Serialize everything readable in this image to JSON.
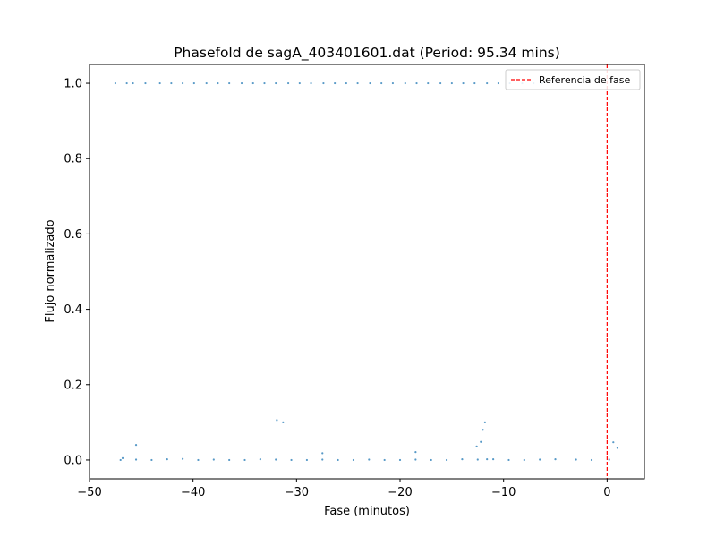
{
  "chart_data": {
    "type": "scatter",
    "title": "Phasefold de sagA_403401601.dat (Period: 95.34 mins)",
    "xlabel": "Fase (minutos)",
    "ylabel": "Flujo normalizado",
    "xlim": [
      -50,
      3.6
    ],
    "ylim": [
      -0.05,
      1.05
    ],
    "xticks": [
      -50,
      -40,
      -30,
      -20,
      -10,
      0
    ],
    "xtick_labels": [
      "−50",
      "−40",
      "−30",
      "−20",
      "−10",
      "0"
    ],
    "yticks": [
      0.0,
      0.2,
      0.4,
      0.6,
      0.8,
      1.0
    ],
    "ytick_labels": [
      "0.0",
      "0.2",
      "0.4",
      "0.6",
      "0.8",
      "1.0"
    ],
    "grid": false,
    "legend_position": "top-right",
    "series": [
      {
        "name": "",
        "color": "#1f77b4",
        "x": [
          -47.5,
          -46.4,
          -45.8,
          -44.6,
          -43.2,
          -42.1,
          -41.0,
          -39.9,
          -38.7,
          -37.6,
          -36.5,
          -35.3,
          -34.2,
          -33.1,
          -32.0,
          -30.8,
          -29.7,
          -28.6,
          -27.4,
          -26.3,
          -25.2,
          -24.1,
          -22.9,
          -21.8,
          -20.7,
          -19.5,
          -18.4,
          -17.3,
          -16.1,
          -15.0,
          -13.9,
          -12.8,
          -11.6,
          -10.5,
          -9.4,
          -8.2,
          -7.1,
          -6.3,
          -47.0,
          -45.5,
          -44.0,
          -42.5,
          -41.0,
          -39.5,
          -38.0,
          -36.5,
          -35.0,
          -33.5,
          -32.0,
          -30.5,
          -29.0,
          -27.5,
          -26.0,
          -24.5,
          -23.0,
          -21.5,
          -20.0,
          -18.5,
          -17.0,
          -15.5,
          -14.0,
          -12.5,
          -11.0,
          -9.5,
          -8.0,
          -6.5,
          -5.0,
          -3.0,
          -1.5,
          -46.8,
          -45.5,
          -31.9,
          -31.3,
          -27.5,
          -18.5,
          -12.6,
          -12.2,
          -12.0,
          -11.8,
          -11.6,
          0.6,
          1.0,
          0.2
        ],
        "y": [
          1.0,
          1.0,
          1.0,
          1.0,
          1.0,
          1.0,
          1.0,
          1.0,
          1.0,
          1.0,
          1.0,
          1.0,
          1.0,
          1.0,
          1.0,
          1.0,
          1.0,
          1.0,
          1.0,
          1.0,
          1.0,
          1.0,
          1.0,
          1.0,
          1.0,
          1.0,
          1.0,
          1.0,
          1.0,
          1.0,
          1.0,
          1.0,
          1.0,
          1.0,
          1.0,
          1.0,
          1.0,
          1.0,
          0.0,
          0.001,
          0.0,
          0.002,
          0.003,
          0.0,
          0.001,
          0.0,
          0.0,
          0.002,
          0.001,
          0.0,
          0.0,
          0.001,
          0.0,
          0.0,
          0.001,
          0.0,
          0.0,
          0.001,
          0.0,
          0.0,
          0.002,
          0.001,
          0.002,
          0.0,
          0.0,
          0.001,
          0.002,
          0.001,
          0.0,
          0.005,
          0.04,
          0.106,
          0.1,
          0.018,
          0.021,
          0.036,
          0.048,
          0.08,
          0.1,
          0.002,
          0.047,
          0.032,
          0.001
        ]
      }
    ],
    "reference_line": {
      "label": "Referencia de fase",
      "x": 0,
      "color": "#ff0000",
      "style": "dashed"
    }
  }
}
